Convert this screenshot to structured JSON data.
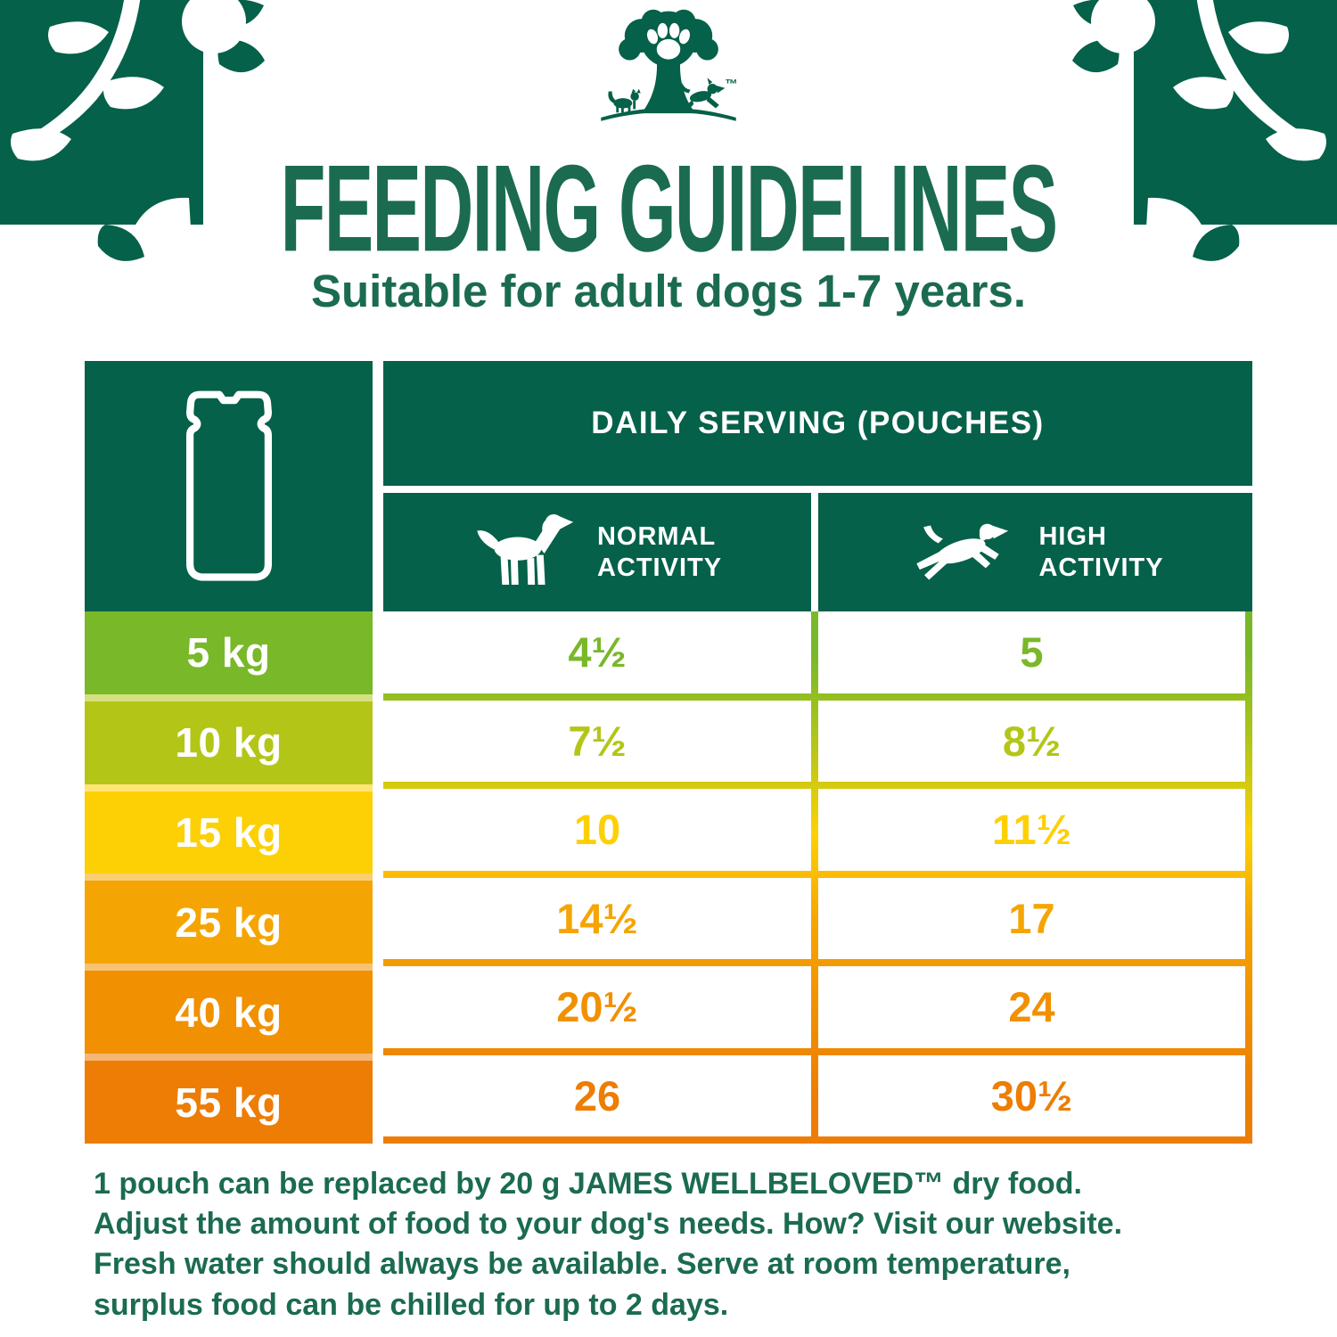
{
  "colors": {
    "brand_green": "#056149",
    "brand_green_text": "#1B6B50",
    "separator_tint": "rgba(255,255,255,0.45)"
  },
  "logo": {
    "tm": "™"
  },
  "icons": {
    "logo": "tree-paw-cat-dog-logo",
    "corner": "leaf-decoration",
    "pouch": "pouch-icon",
    "normal_activity": "dog-standing-icon",
    "high_activity": "dog-jumping-icon"
  },
  "header": {
    "title": "FEEDING GUIDELINES",
    "subtitle": "Suitable for adult dogs 1-7 years."
  },
  "table": {
    "serving_header": "DAILY SERVING (POUCHES)",
    "normal_header": {
      "line1": "NORMAL",
      "line2": "ACTIVITY"
    },
    "high_header": {
      "line1": "HIGH",
      "line2": "ACTIVITY"
    },
    "rows": [
      {
        "weight": "5 kg",
        "normal": "4½",
        "high": "5",
        "color": "#79B829"
      },
      {
        "weight": "10 kg",
        "normal": "7½",
        "high": "8½",
        "color": "#B3C618"
      },
      {
        "weight": "15 kg",
        "normal": "10",
        "high": "11½",
        "color": "#FDD005"
      },
      {
        "weight": "25 kg",
        "normal": "14½",
        "high": "17",
        "color": "#F5A503"
      },
      {
        "weight": "40 kg",
        "normal": "20½",
        "high": "24",
        "color": "#F19000"
      },
      {
        "weight": "55 kg",
        "normal": "26",
        "high": "30½",
        "color": "#ED7D04"
      }
    ]
  },
  "footer": {
    "lines": [
      "1 pouch can be replaced by 20 g JAMES WELLBELOVED™ dry food.",
      "Adjust the amount of food to your dog's needs. How? Visit our website.",
      "Fresh water should always be available. Serve at room temperature,",
      "surplus food can be chilled for up to 2 days."
    ]
  }
}
